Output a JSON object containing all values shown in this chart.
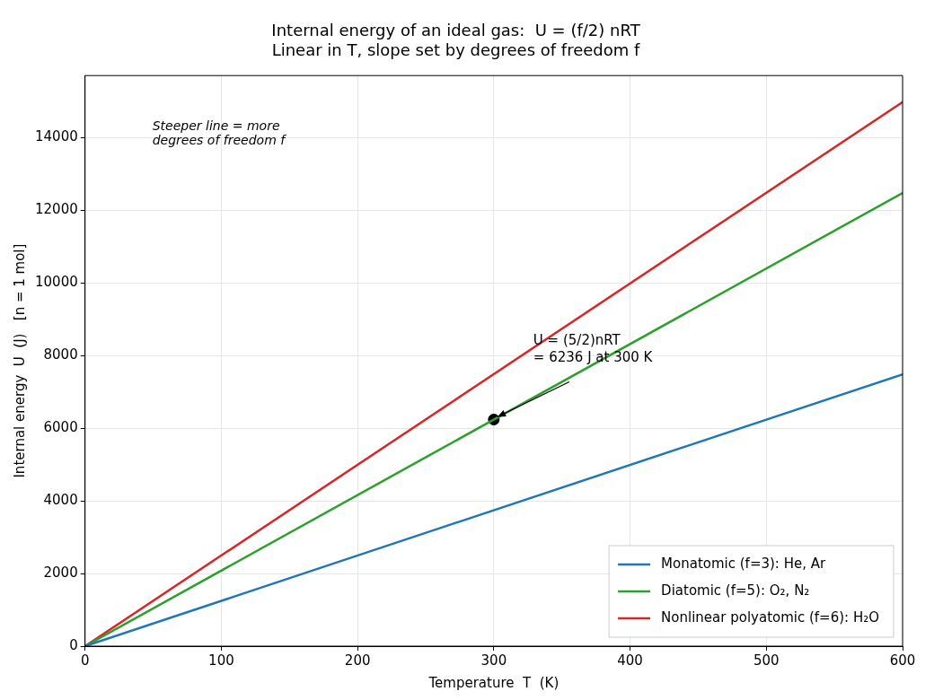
{
  "chart_data": {
    "type": "line",
    "title": "Internal energy of an ideal gas:  U = (f/2) nRT",
    "subtitle": "Linear in T, slope set by degrees of freedom f",
    "xlabel": "Temperature  T  (K)",
    "ylabel": "Internal energy  U  (J)   [n = 1 mol]",
    "xlim": [
      0,
      600
    ],
    "xticks": [
      0,
      100,
      200,
      300,
      400,
      500,
      600
    ],
    "ylim": [
      0,
      15700
    ],
    "yticks": [
      0,
      2000,
      4000,
      6000,
      8000,
      10000,
      12000,
      14000
    ],
    "grid": true,
    "legend": "bottom right",
    "marker": "none",
    "line_style": "solid",
    "series": [
      {
        "name": "Monatomic (f=3): He, Ar",
        "color": "#1f77b4",
        "x": [
          0,
          600
        ],
        "values": [
          0,
          7480
        ]
      },
      {
        "name": "Diatomic (f=5): O₂, N₂",
        "color": "#2ca02c",
        "x": [
          0,
          600
        ],
        "values": [
          0,
          12470
        ]
      },
      {
        "name": "Nonlinear polyatomic (f=6): H₂O",
        "color": "#d62728",
        "x": [
          0,
          600
        ],
        "values": [
          0,
          14970
        ]
      },
      {
        "type": "scatter",
        "marker": "circle",
        "color": "#000000",
        "x": [
          300
        ],
        "values": [
          6236
        ]
      }
    ],
    "annotations": [
      {
        "text": "U = (5/2)nRT\n= 6236 J at 300 K",
        "x": 300,
        "y": 6236
      },
      "Steeper line = more\ndegrees of freedom f"
    ]
  }
}
